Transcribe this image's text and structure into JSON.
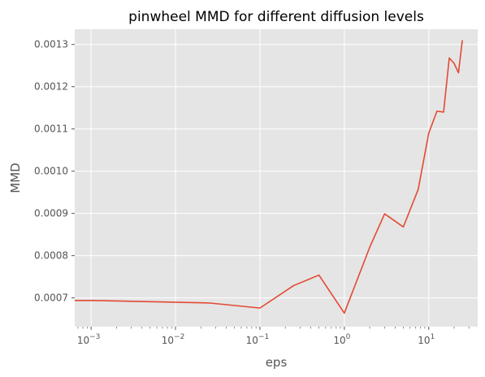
{
  "chart_data": {
    "type": "line",
    "title": "pinwheel MMD for different diffusion levels",
    "xlabel": "eps",
    "ylabel": "MMD",
    "xscale": "log",
    "xlim": [
      0.00064,
      38
    ],
    "ylim": [
      0.000632,
      0.001336
    ],
    "grid": true,
    "x_ticks": [
      {
        "value": 0.001,
        "base": "10",
        "exp": "−3"
      },
      {
        "value": 0.01,
        "base": "10",
        "exp": "−2"
      },
      {
        "value": 0.1,
        "base": "10",
        "exp": "−1"
      },
      {
        "value": 1,
        "base": "10",
        "exp": "0"
      },
      {
        "value": 10,
        "base": "10",
        "exp": "1"
      }
    ],
    "y_ticks": [
      {
        "value": 0.0007,
        "label": "0.0007"
      },
      {
        "value": 0.0008,
        "label": "0.0008"
      },
      {
        "value": 0.0009,
        "label": "0.0009"
      },
      {
        "value": 0.001,
        "label": "0.0010"
      },
      {
        "value": 0.0011,
        "label": "0.0011"
      },
      {
        "value": 0.0012,
        "label": "0.0012"
      },
      {
        "value": 0.0013,
        "label": "0.0013"
      }
    ],
    "series": [
      {
        "color": "#E24A33",
        "x": [
          0.00064,
          0.001,
          0.025,
          0.1,
          0.25,
          0.5,
          1,
          2,
          3,
          5,
          7.5,
          10,
          12.5,
          15,
          17.5,
          20,
          22.5,
          25
        ],
        "y": [
          0.000694,
          0.000694,
          0.000688,
          0.000676,
          0.000729,
          0.000754,
          0.000664,
          0.00082,
          0.000899,
          0.000868,
          0.000957,
          0.00109,
          0.001142,
          0.00114,
          0.001268,
          0.001255,
          0.001233,
          0.00131
        ]
      }
    ]
  }
}
